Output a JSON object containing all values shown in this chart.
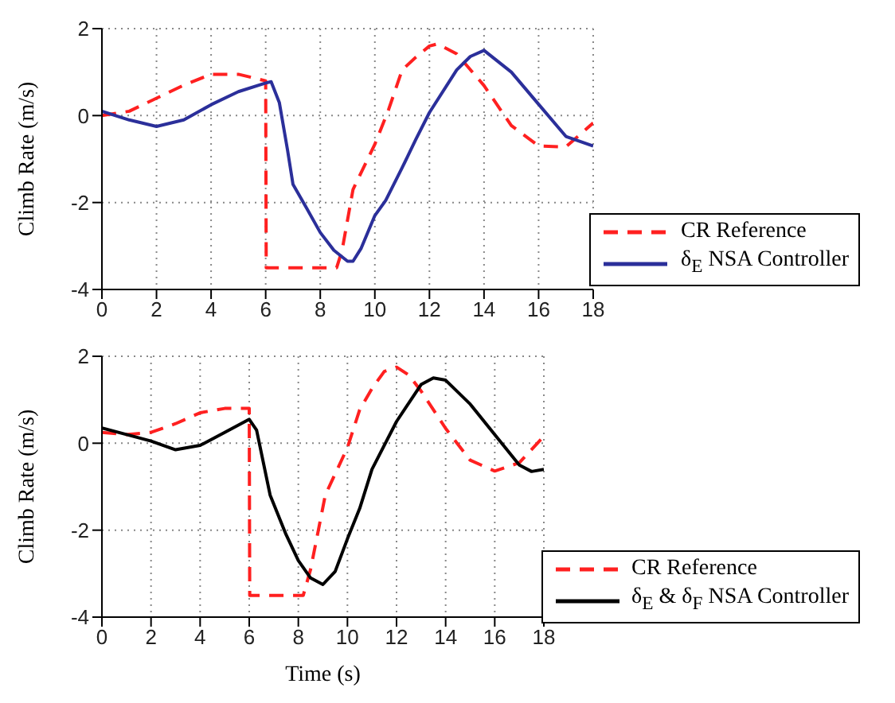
{
  "chart_data": [
    {
      "type": "line",
      "ylabel": "Climb Rate (m/s)",
      "xlim": [
        0,
        18
      ],
      "xticks": [
        0,
        2,
        4,
        6,
        8,
        10,
        12,
        14,
        16,
        18
      ],
      "ylim": [
        -4,
        2
      ],
      "yticks": [
        -4,
        -2,
        0,
        2
      ],
      "grid": true,
      "legend": "bottom right",
      "marker": "none",
      "series": [
        {
          "name": "CR Reference",
          "color": "#ff2020",
          "line_style": "dashed",
          "x": [
            0,
            1,
            2,
            3,
            4,
            5,
            6,
            6.02,
            8.6,
            8.8,
            9.2,
            10,
            10.5,
            11,
            11.5,
            12,
            12.3,
            13,
            14,
            15,
            16,
            17,
            18
          ],
          "values": [
            0,
            0.1,
            0.4,
            0.7,
            0.95,
            0.95,
            0.8,
            -3.5,
            -3.5,
            -3.1,
            -1.7,
            -0.66,
            0.13,
            1.05,
            1.34,
            1.6,
            1.65,
            1.42,
            0.69,
            -0.23,
            -0.7,
            -0.72,
            -0.17
          ]
        },
        {
          "name": "δ$_{E}$ NSA Controller",
          "color": "#2b2f9a",
          "line_style": "solid",
          "x": [
            0,
            1,
            2,
            3,
            4,
            5,
            6,
            6.2,
            6.5,
            6.8,
            7,
            7.5,
            8,
            8.5,
            9,
            9.2,
            9.5,
            10,
            10.4,
            11,
            11.5,
            12,
            13,
            13.5,
            14,
            15,
            16,
            17,
            18
          ],
          "values": [
            0.1,
            -0.1,
            -0.25,
            -0.1,
            0.25,
            0.55,
            0.75,
            0.78,
            0.3,
            -0.79,
            -1.58,
            -2.13,
            -2.69,
            -3.1,
            -3.35,
            -3.35,
            -3.05,
            -2.3,
            -1.95,
            -1.2,
            -0.55,
            0.07,
            1.05,
            1.36,
            1.5,
            1.0,
            0.26,
            -0.48,
            -0.7
          ]
        }
      ]
    },
    {
      "type": "line",
      "ylabel": "Climb Rate (m/s)",
      "xlabel": "Time (s)",
      "xlim": [
        0,
        18
      ],
      "xticks": [
        0,
        2,
        4,
        6,
        8,
        10,
        12,
        14,
        16,
        18
      ],
      "ylim": [
        -4,
        2
      ],
      "yticks": [
        -4,
        -2,
        0,
        2
      ],
      "grid": true,
      "legend": "bottom right",
      "marker": "none",
      "series": [
        {
          "name": "CR Reference",
          "color": "#ff2020",
          "line_style": "dashed",
          "x": [
            0,
            1,
            2,
            3,
            4,
            5,
            6,
            6.02,
            8.2,
            8.5,
            9.1,
            10,
            10.5,
            11,
            11.5,
            12,
            12.5,
            13,
            14,
            15,
            16,
            17,
            18
          ],
          "values": [
            0.25,
            0.2,
            0.25,
            0.45,
            0.7,
            0.8,
            0.8,
            -3.5,
            -3.5,
            -2.9,
            -1.19,
            -0.1,
            0.77,
            1.26,
            1.65,
            1.75,
            1.57,
            1.2,
            0.34,
            -0.39,
            -0.64,
            -0.45,
            0.16
          ]
        },
        {
          "name": "δ$_{E}$ & δ$_{F}$ NSA Controller",
          "color": "#000000",
          "line_style": "solid",
          "x": [
            0,
            1,
            2,
            3,
            4,
            5,
            6,
            6.3,
            6.85,
            7.5,
            8,
            8.5,
            9,
            9.5,
            10,
            10.5,
            11,
            12,
            13,
            13.5,
            14,
            15,
            16,
            17,
            17.5,
            18
          ],
          "values": [
            0.35,
            0.2,
            0.05,
            -0.15,
            -0.05,
            0.25,
            0.55,
            0.3,
            -1.19,
            -2.1,
            -2.7,
            -3.1,
            -3.25,
            -2.95,
            -2.2,
            -1.5,
            -0.6,
            0.5,
            1.35,
            1.5,
            1.45,
            0.9,
            0.2,
            -0.5,
            -0.65,
            -0.6
          ]
        }
      ]
    }
  ]
}
